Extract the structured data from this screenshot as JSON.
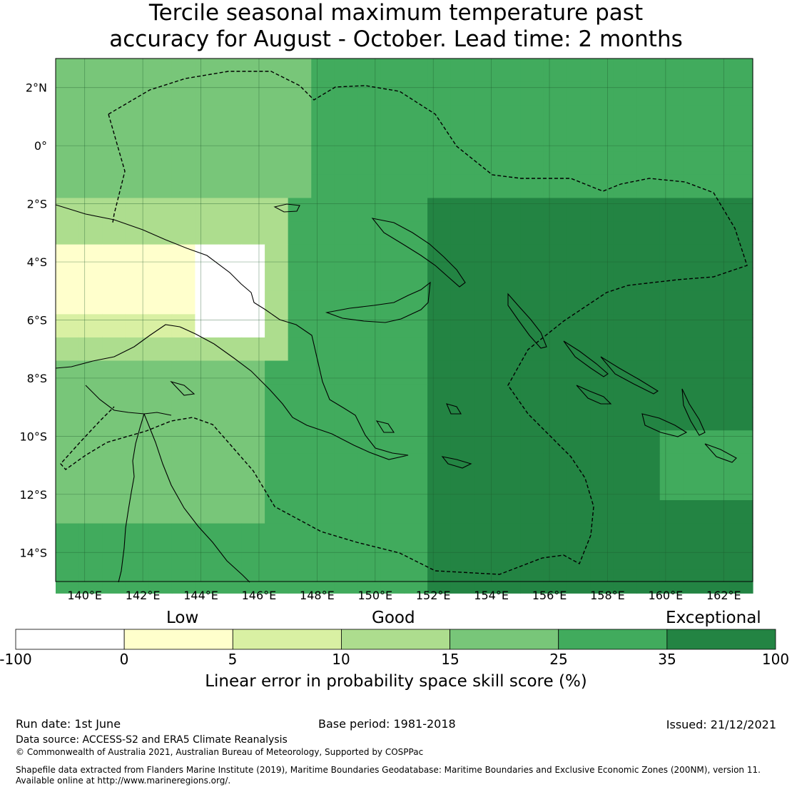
{
  "title": {
    "line1": "Tercile seasonal maximum temperature past",
    "line2": "accuracy for August - October. Lead time: 2 months"
  },
  "map": {
    "lon_range": [
      139,
      163
    ],
    "lat_range": [
      -15,
      3
    ],
    "lon_ticks": [
      "140°E",
      "142°E",
      "144°E",
      "146°E",
      "148°E",
      "150°E",
      "152°E",
      "154°E",
      "156°E",
      "158°E",
      "160°E",
      "162°E"
    ],
    "lat_ticks": [
      "2°N",
      "0°",
      "2°S",
      "4°S",
      "6°S",
      "8°S",
      "10°S",
      "12°S",
      "14°S"
    ],
    "grid": true
  },
  "colorbar": {
    "category_labels": [
      "Low",
      "Good",
      "Exceptional"
    ],
    "ticks": [
      "-100",
      "0",
      "5",
      "10",
      "15",
      "25",
      "35",
      "100"
    ],
    "colors": [
      "#ffffff",
      "#ffffcc",
      "#d9f0a3",
      "#addd8e",
      "#78c679",
      "#41ab5d",
      "#238443"
    ],
    "label": "Linear error in probability space skill score (%)"
  },
  "footer": {
    "run_date": "Run date: 1st June",
    "base_period": "Base period: 1981-2018",
    "issued": "Issued: 21/12/2021",
    "data_source": "Data source: ACCESS-S2 and ERA5 Climate Reanalysis",
    "copyright": "© Commonwealth of Australia 2021, Australian Bureau of Meteorology, Supported by COSPPac",
    "shapefile_line1": "Shapefile data extracted from Flanders Marine Institute (2019), Maritime Boundaries Geodatabase: Maritime Boundaries and Exclusive Economic Zones (200NM), version 11.",
    "shapefile_line2": "Available online at http://www.marineregions.org/."
  }
}
